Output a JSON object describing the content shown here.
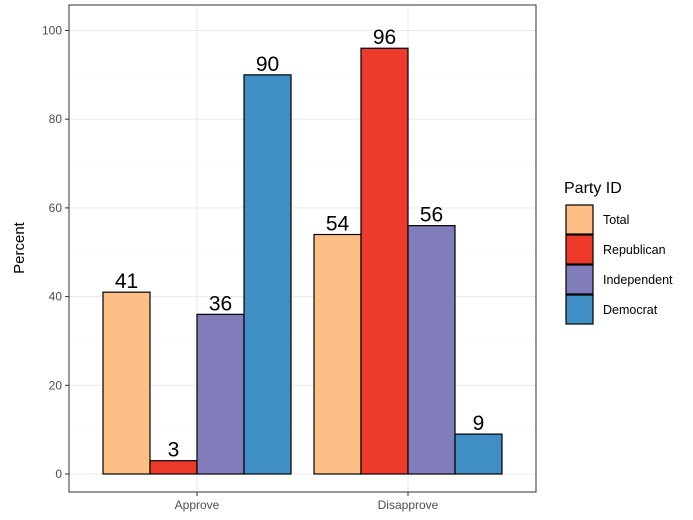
{
  "chart_data": {
    "type": "bar",
    "categories": [
      "Approve",
      "Disapprove"
    ],
    "series": [
      {
        "name": "Total",
        "values": [
          41,
          54
        ],
        "color": "#FDBF85"
      },
      {
        "name": "Republican",
        "values": [
          3,
          96
        ],
        "color": "#EE3A2A"
      },
      {
        "name": "Independent",
        "values": [
          36,
          56
        ],
        "color": "#807DBA"
      },
      {
        "name": "Democrat",
        "values": [
          90,
          9
        ],
        "color": "#3F8FC4"
      }
    ],
    "title": "",
    "xlabel": "",
    "ylabel": "Percent",
    "ylim": [
      0,
      104
    ],
    "yticks": [
      0,
      20,
      40,
      60,
      80,
      100
    ],
    "grid": true,
    "legend": {
      "title": "Party ID",
      "position": "right"
    }
  }
}
